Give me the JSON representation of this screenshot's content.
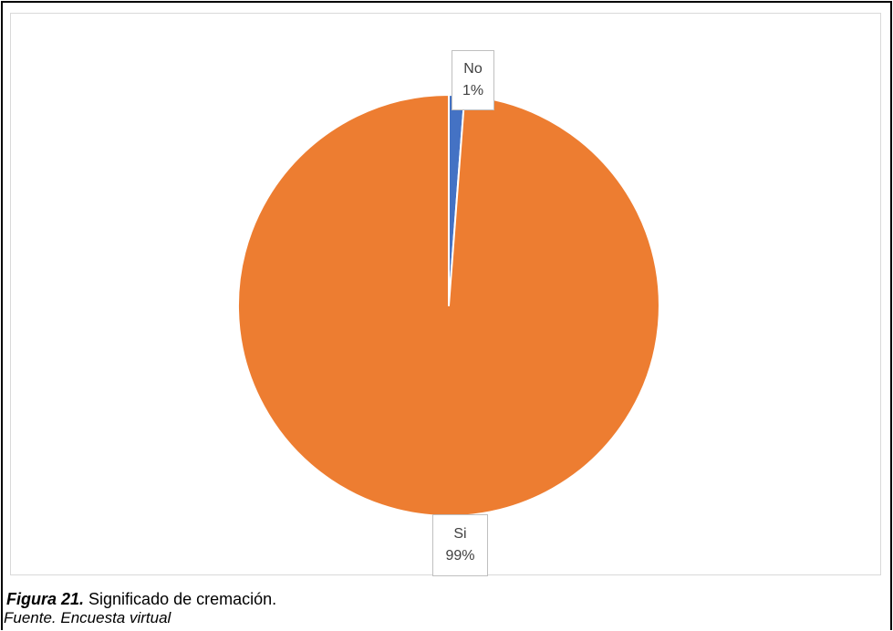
{
  "chart_data": {
    "type": "pie",
    "slices": [
      {
        "category": "No",
        "percent_label": "1%",
        "value": 1.2,
        "color": "#4472c4"
      },
      {
        "category": "Si",
        "percent_label": "99%",
        "value": 98.8,
        "color": "#ed7d31"
      }
    ]
  },
  "caption": {
    "figure_number": "Figura 21.",
    "text": " Significado de cremación."
  },
  "source": "Fuente. Encuesta virtual"
}
